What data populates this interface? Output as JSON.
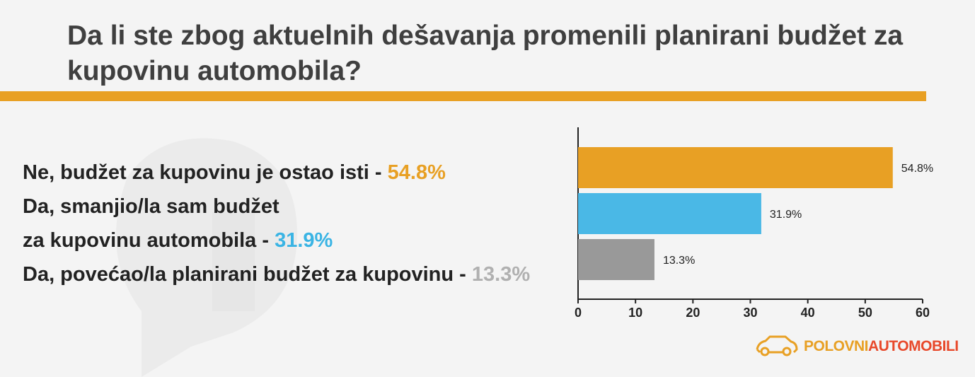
{
  "title": "Da li ste zbog aktuelnih dešavanja promenili planirani budžet za kupovinu automobila?",
  "legend": [
    {
      "text": "Ne, budžet za kupovinu je ostao isti - ",
      "pct": "54.8%",
      "color": "#e8a024"
    },
    {
      "text": "Da, smanjio/la sam budžet",
      "pct": "",
      "color": ""
    },
    {
      "text": "za kupovinu automobila  - ",
      "pct": "31.9%",
      "color": "#3ab4e4"
    },
    {
      "text": "Da, povećao/la planirani budžet za kupovinu  - ",
      "pct": "13.3%",
      "color": "#b0b0b0"
    }
  ],
  "brand": {
    "part1": "POLOVNI",
    "part2": "AUTOMOBILI",
    "color1": "#e8a024",
    "color2": "#e8482a"
  },
  "chart_data": {
    "type": "bar",
    "orientation": "horizontal",
    "categories": [
      "Ne, budžet za kupovinu je ostao isti",
      "Da, smanjio/la sam budžet za kupovinu automobila",
      "Da, povećao/la planirani budžet za kupovinu"
    ],
    "values": [
      54.8,
      31.9,
      13.3
    ],
    "data_labels": [
      "54.8%",
      "31.9%",
      "13.3%"
    ],
    "colors": [
      "#e8a024",
      "#4ab8e6",
      "#999999"
    ],
    "xlim": [
      0,
      60
    ],
    "xticks": [
      "0",
      "10",
      "20",
      "30",
      "40",
      "50",
      "60"
    ],
    "grid": false
  }
}
